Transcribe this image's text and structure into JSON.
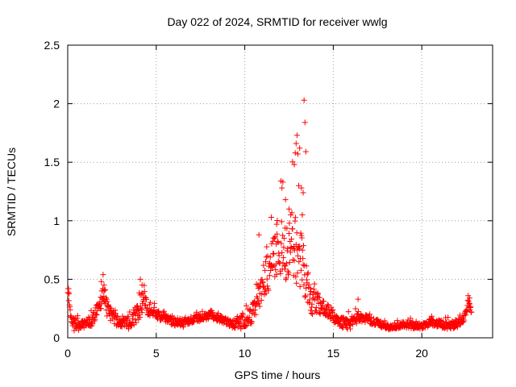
{
  "chart_data": {
    "type": "scatter",
    "title": "Day 022 of 2024, SRMTID for receiver wwlg",
    "xlabel": "GPS time / hours",
    "ylabel": "SRMTID / TECUs",
    "xlim": [
      0,
      24
    ],
    "ylim": [
      0,
      2.5
    ],
    "xticks": [
      0,
      5,
      10,
      15,
      20
    ],
    "xtick_labels": [
      "0",
      "5",
      "10",
      "15",
      "20"
    ],
    "yticks": [
      0,
      0.5,
      1,
      1.5,
      2,
      2.5
    ],
    "ytick_labels": [
      "0",
      "0.5",
      "1",
      "1.5",
      "2",
      "2.5"
    ],
    "grid": true,
    "marker": "+",
    "series": [
      {
        "name": "SRMTID",
        "color": "#ff0000",
        "anchors": [
          [
            0.0,
            0.4
          ],
          [
            0.2,
            0.12
          ],
          [
            0.6,
            0.1
          ],
          [
            1.0,
            0.12
          ],
          [
            1.4,
            0.15
          ],
          [
            1.7,
            0.25
          ],
          [
            2.0,
            0.35
          ],
          [
            2.3,
            0.22
          ],
          [
            2.7,
            0.15
          ],
          [
            3.2,
            0.11
          ],
          [
            3.6,
            0.12
          ],
          [
            3.9,
            0.2
          ],
          [
            4.2,
            0.3
          ],
          [
            4.6,
            0.25
          ],
          [
            5.0,
            0.2
          ],
          [
            5.5,
            0.16
          ],
          [
            6.0,
            0.13
          ],
          [
            6.5,
            0.12
          ],
          [
            7.0,
            0.15
          ],
          [
            7.5,
            0.17
          ],
          [
            8.0,
            0.19
          ],
          [
            8.5,
            0.17
          ],
          [
            9.0,
            0.13
          ],
          [
            9.5,
            0.12
          ],
          [
            10.0,
            0.14
          ],
          [
            10.4,
            0.2
          ],
          [
            10.8,
            0.35
          ],
          [
            11.2,
            0.5
          ],
          [
            11.6,
            0.65
          ],
          [
            12.0,
            0.75
          ],
          [
            12.4,
            0.7
          ],
          [
            12.8,
            0.8
          ],
          [
            13.1,
            0.7
          ],
          [
            13.4,
            0.5
          ],
          [
            13.8,
            0.3
          ],
          [
            14.3,
            0.27
          ],
          [
            14.8,
            0.22
          ],
          [
            15.2,
            0.13
          ],
          [
            15.6,
            0.12
          ],
          [
            16.0,
            0.11
          ],
          [
            16.4,
            0.17
          ],
          [
            16.8,
            0.16
          ],
          [
            17.2,
            0.14
          ],
          [
            17.6,
            0.12
          ],
          [
            18.0,
            0.09
          ],
          [
            18.5,
            0.1
          ],
          [
            19.0,
            0.11
          ],
          [
            19.5,
            0.1
          ],
          [
            20.0,
            0.09
          ],
          [
            20.5,
            0.13
          ],
          [
            21.0,
            0.12
          ],
          [
            21.5,
            0.1
          ],
          [
            22.0,
            0.12
          ],
          [
            22.4,
            0.16
          ],
          [
            22.6,
            0.3
          ],
          [
            22.8,
            0.22
          ]
        ],
        "spread": [
          [
            0.0,
            0.12
          ],
          [
            1.0,
            0.05
          ],
          [
            2.0,
            0.15
          ],
          [
            3.0,
            0.06
          ],
          [
            4.2,
            0.18
          ],
          [
            5.0,
            0.06
          ],
          [
            9.0,
            0.05
          ],
          [
            10.5,
            0.15
          ],
          [
            11.5,
            0.3
          ],
          [
            12.5,
            0.45
          ],
          [
            13.0,
            0.6
          ],
          [
            13.5,
            0.25
          ],
          [
            14.5,
            0.1
          ],
          [
            16.0,
            0.07
          ],
          [
            18.0,
            0.04
          ],
          [
            22.6,
            0.06
          ]
        ],
        "peaks": [
          [
            0.05,
            0.42
          ],
          [
            1.9,
            0.48
          ],
          [
            2.0,
            0.54
          ],
          [
            2.05,
            0.45
          ],
          [
            4.1,
            0.5
          ],
          [
            4.2,
            0.45
          ],
          [
            10.8,
            0.88
          ],
          [
            11.5,
            1.03
          ],
          [
            11.8,
            0.97
          ],
          [
            12.1,
            1.28
          ],
          [
            12.15,
            1.33
          ],
          [
            12.3,
            1.18
          ],
          [
            12.5,
            1.1
          ],
          [
            12.6,
            1.05
          ],
          [
            12.8,
            1.48
          ],
          [
            12.85,
            1.58
          ],
          [
            12.9,
            1.66
          ],
          [
            12.95,
            1.73
          ],
          [
            13.0,
            1.57
          ],
          [
            13.05,
            1.3
          ],
          [
            13.1,
            1.62
          ],
          [
            13.2,
            1.28
          ],
          [
            13.3,
            1.24
          ],
          [
            13.35,
            2.03
          ],
          [
            13.4,
            1.84
          ],
          [
            13.45,
            1.59
          ],
          [
            13.25,
            1.05
          ],
          [
            12.7,
            0.93
          ],
          [
            16.4,
            0.33
          ],
          [
            22.7,
            0.34
          ]
        ]
      }
    ]
  }
}
